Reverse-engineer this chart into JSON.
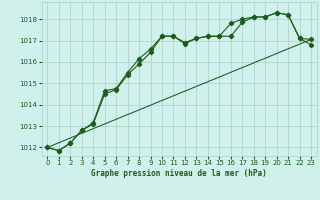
{
  "title": "Graphe pression niveau de la mer (hPa)",
  "background_color": "#cff0eb",
  "grid_color": "#a8cfc8",
  "line_color": "#1a5c1a",
  "xlim": [
    -0.5,
    23.5
  ],
  "ylim": [
    1011.6,
    1018.8
  ],
  "yticks": [
    1012,
    1013,
    1014,
    1015,
    1016,
    1017,
    1018
  ],
  "xticks": [
    0,
    1,
    2,
    3,
    4,
    5,
    6,
    7,
    8,
    9,
    10,
    11,
    12,
    13,
    14,
    15,
    16,
    17,
    18,
    19,
    20,
    21,
    22,
    23
  ],
  "series1_x": [
    0,
    1,
    2,
    3,
    4,
    5,
    6,
    7,
    8,
    9,
    10,
    11,
    12,
    13,
    14,
    15,
    16,
    17,
    18,
    19,
    20,
    21,
    22,
    23
  ],
  "series1_y": [
    1012.0,
    1011.85,
    1012.2,
    1012.8,
    1013.15,
    1014.65,
    1014.75,
    1015.5,
    1016.15,
    1016.6,
    1017.2,
    1017.2,
    1016.85,
    1017.1,
    1017.2,
    1017.2,
    1017.2,
    1017.85,
    1018.1,
    1018.1,
    1018.3,
    1018.2,
    1017.1,
    1017.05
  ],
  "series2_x": [
    0,
    1,
    2,
    3,
    4,
    5,
    6,
    7,
    8,
    9,
    10,
    11,
    12,
    13,
    14,
    15,
    16,
    17,
    18,
    19,
    20,
    21,
    22,
    23
  ],
  "series2_y": [
    1012.0,
    1011.85,
    1012.2,
    1012.8,
    1013.1,
    1014.5,
    1014.7,
    1015.4,
    1015.9,
    1016.45,
    1017.2,
    1017.2,
    1016.9,
    1017.1,
    1017.2,
    1017.2,
    1017.8,
    1018.0,
    1018.1,
    1018.1,
    1018.3,
    1018.2,
    1017.1,
    1016.8
  ],
  "series3_x": [
    0,
    23
  ],
  "series3_y": [
    1012.0,
    1017.05
  ]
}
